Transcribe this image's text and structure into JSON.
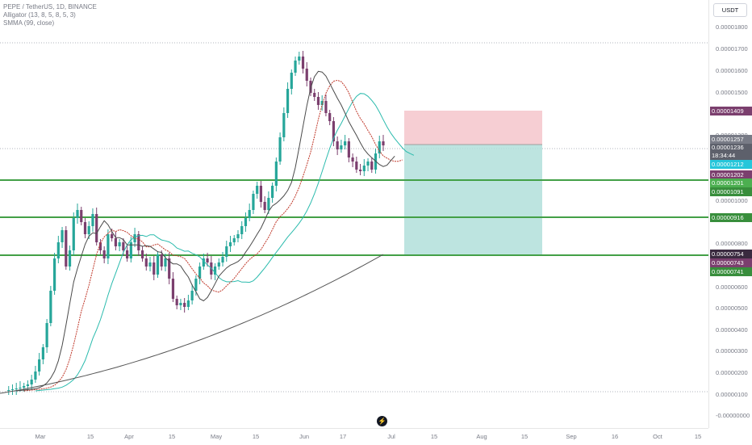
{
  "legend": {
    "symbol": "PEPE / TetherUS, 1D, BINANCE",
    "alligator": "Alligator (13, 8, 5, 8, 5, 3)",
    "smma": "SMMA (99, close)"
  },
  "currency_button": "USDT",
  "price_ticks": [
    "0.00001800",
    "0.00001700",
    "0.00001600",
    "0.00001500",
    "0.00001300",
    "0.00001100",
    "0.00001000",
    "0.00000800",
    "0.00000600",
    "0.00000500",
    "0.00000400",
    "0.00000300",
    "0.00000200",
    "0.00000100",
    "-0.00000000"
  ],
  "price_tags": [
    {
      "text": "0.00001409",
      "color": "#7b3f6e"
    },
    {
      "text": "0.00001257",
      "color": "#787b86"
    },
    {
      "text": "0.00001236",
      "sub": "18:34:44",
      "color": "#5d606b"
    },
    {
      "text": "0.00001212",
      "color": "#26c6da"
    },
    {
      "text": "0.00001202",
      "color": "#7b3f6e"
    },
    {
      "text": "0.00001201",
      "color": "#4caf50"
    },
    {
      "text": "0.00001091",
      "color": "#388e3c"
    },
    {
      "text": "0.00000916",
      "color": "#388e3c"
    },
    {
      "text": "0.00000754",
      "color": "#3a2a3f"
    },
    {
      "text": "0.00000743",
      "color": "#7b3f6e"
    },
    {
      "text": "0.00000741",
      "color": "#388e3c"
    }
  ],
  "time_ticks": [
    "Mar",
    "15",
    "Apr",
    "15",
    "May",
    "15",
    "Jun",
    "17",
    "Jul",
    "15",
    "Aug",
    "15",
    "Sep",
    "16",
    "Oct",
    "15"
  ],
  "colors": {
    "bull": "#26a69a",
    "bear": "#7b3f6e",
    "jaw": "#2bbbad",
    "teeth": "#c0392b",
    "lips": "#4a4a4a",
    "smma": "#555555",
    "support": "#43a047",
    "stop_zone": "#f5c6cb",
    "target_zone": "#b2dfdb"
  },
  "chart_data": {
    "type": "candlestick",
    "symbol": "PEPE / TetherUS",
    "interval": "1D",
    "exchange": "BINANCE",
    "last_price": 1.236e-05,
    "support_levels": [
      1.201e-05,
      9.16e-06,
      7.41e-06
    ],
    "long_position": {
      "entry": 1.257e-05,
      "take_profit": 1.409e-05,
      "stop_loss": 7.54e-06
    },
    "y_range": [
      0.0,
      1.85e-05
    ]
  }
}
